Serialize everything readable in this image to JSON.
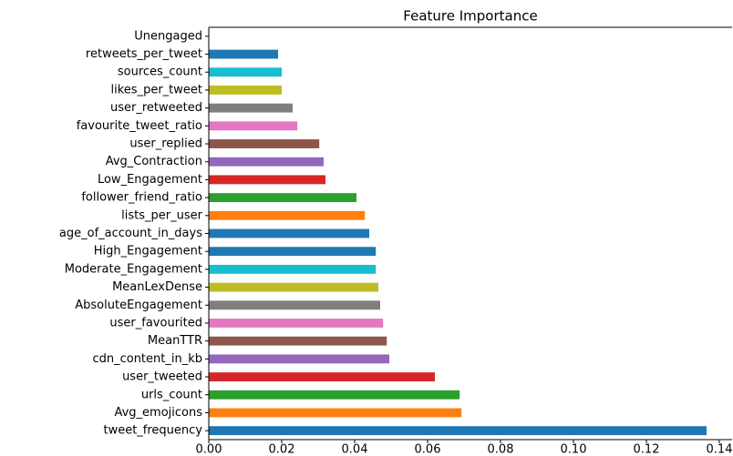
{
  "chart_data": {
    "type": "barh",
    "title": "Feature Importance",
    "categories": [
      "tweet_frequency",
      "Avg_emojicons",
      "urls_count",
      "user_tweeted",
      "cdn_content_in_kb",
      "MeanTTR",
      "user_favourited",
      "AbsoluteEngagement",
      "MeanLexDense",
      "Moderate_Engagement",
      "High_Engagement",
      "age_of_account_in_days",
      "lists_per_user",
      "follower_friend_ratio",
      "Low_Engagement",
      "Avg_Contraction",
      "user_replied",
      "favourite_tweet_ratio",
      "user_retweeted",
      "likes_per_tweet",
      "sources_count",
      "retweets_per_tweet",
      "Unengaged"
    ],
    "values": [
      0.1365,
      0.0693,
      0.0688,
      0.062,
      0.0495,
      0.0488,
      0.0478,
      0.047,
      0.0465,
      0.0458,
      0.0458,
      0.044,
      0.0428,
      0.0405,
      0.032,
      0.0315,
      0.0303,
      0.0243,
      0.023,
      0.02,
      0.02,
      0.019,
      0
    ],
    "colors": [
      "#1f77b4",
      "#ff7f0e",
      "#2ca02c",
      "#d62728",
      "#9467bd",
      "#8c564b",
      "#e377c2",
      "#7f7f7f",
      "#bcbd22",
      "#17becf",
      "#1f77b4",
      "#1f77b4",
      "#ff7f0e",
      "#2ca02c",
      "#d62728",
      "#9467bd",
      "#8c564b",
      "#e377c2",
      "#7f7f7f",
      "#bcbd22",
      "#17becf",
      "#1f77b4",
      "#ff7f0e"
    ],
    "xlim": [
      0,
      0.1435
    ],
    "xticks": [
      {
        "value": 0,
        "label": "0.00"
      },
      {
        "value": 0.02,
        "label": "0.02"
      },
      {
        "value": 0.04,
        "label": "0.04"
      },
      {
        "value": 0.06,
        "label": "0.06"
      },
      {
        "value": 0.08,
        "label": "0.08"
      },
      {
        "value": 0.1,
        "label": "0.10"
      },
      {
        "value": 0.12,
        "label": "0.12"
      },
      {
        "value": 0.14,
        "label": "0.14"
      }
    ]
  }
}
